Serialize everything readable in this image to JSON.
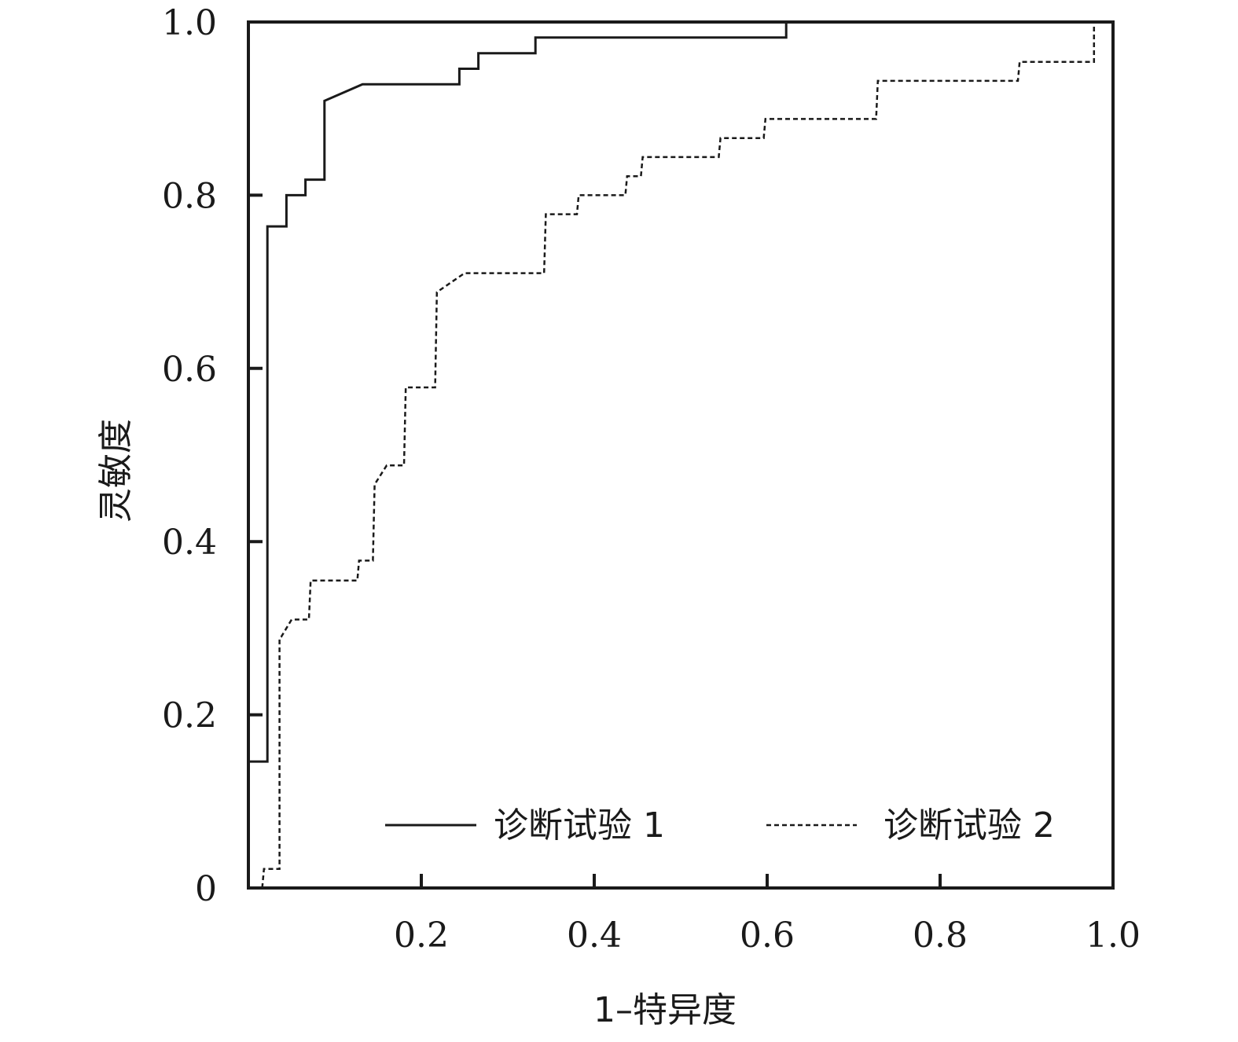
{
  "chart_data": {
    "type": "line",
    "title": "",
    "xlabel": "1–特异度",
    "ylabel": "灵敏度",
    "xlim": [
      0,
      1.0
    ],
    "ylim": [
      0,
      1.0
    ],
    "x_ticks": [
      0.2,
      0.4,
      0.6,
      0.8,
      1.0
    ],
    "x_tick_labels": [
      "0.2",
      "0.4",
      "0.6",
      "0.8",
      "1.0"
    ],
    "y_ticks": [
      0,
      0.2,
      0.4,
      0.6,
      0.8,
      1.0
    ],
    "y_tick_labels": [
      "0",
      "0.2",
      "0.4",
      "0.6",
      "0.8",
      "1.0"
    ],
    "grid": false,
    "legend_position": "bottom-right",
    "series": [
      {
        "name": "诊断试验 1",
        "style": "solid",
        "color": "#1a1a1a",
        "x": [
          0.0,
          0.022,
          0.022,
          0.044,
          0.044,
          0.066,
          0.066,
          0.088,
          0.088,
          0.132,
          0.244,
          0.244,
          0.266,
          0.266,
          0.332,
          0.332,
          0.622,
          0.622
        ],
        "y": [
          0.146,
          0.146,
          0.764,
          0.764,
          0.8,
          0.8,
          0.818,
          0.818,
          0.909,
          0.928,
          0.928,
          0.946,
          0.946,
          0.964,
          0.964,
          0.982,
          0.982,
          1.0
        ]
      },
      {
        "name": "诊断试验 2",
        "style": "dashed",
        "color": "#1a1a1a",
        "x": [
          0.016,
          0.018,
          0.036,
          0.036,
          0.038,
          0.05,
          0.07,
          0.072,
          0.126,
          0.128,
          0.144,
          0.146,
          0.16,
          0.18,
          0.182,
          0.216,
          0.218,
          0.25,
          0.342,
          0.344,
          0.38,
          0.382,
          0.436,
          0.438,
          0.454,
          0.456,
          0.544,
          0.546,
          0.596,
          0.598,
          0.726,
          0.728,
          0.89,
          0.892,
          0.978,
          0.978
        ],
        "y": [
          0.0,
          0.022,
          0.022,
          0.288,
          0.29,
          0.31,
          0.31,
          0.355,
          0.355,
          0.378,
          0.378,
          0.466,
          0.488,
          0.488,
          0.578,
          0.578,
          0.688,
          0.71,
          0.71,
          0.778,
          0.778,
          0.8,
          0.8,
          0.822,
          0.822,
          0.844,
          0.844,
          0.866,
          0.866,
          0.888,
          0.888,
          0.932,
          0.932,
          0.954,
          0.954,
          1.0
        ]
      }
    ]
  }
}
